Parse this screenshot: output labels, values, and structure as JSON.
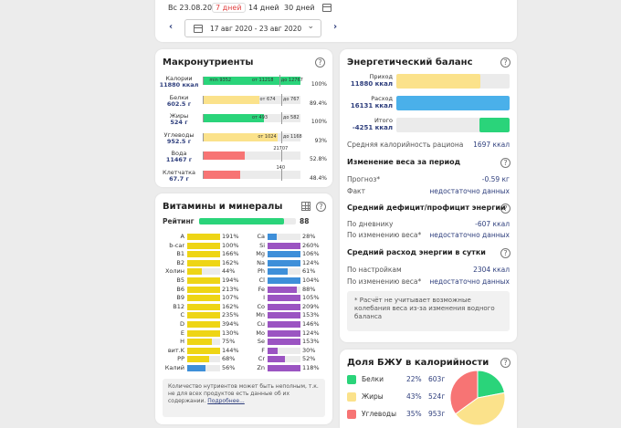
{
  "colors": {
    "green": "#2ad47a",
    "yellow": "#fbe28b",
    "blue": "#4ab0ea",
    "red": "#f77474",
    "vit_yellow": "#eed515",
    "vit_blue": "#3e8fd9",
    "vit_purple": "#9b54c2"
  },
  "top": {
    "periods": [
      "Вс 23.08.20",
      "7 дней",
      "14 дней",
      "30 дней"
    ],
    "active_period": "7 дней",
    "date_range": "17 авг 2020 - 23 авг 2020"
  },
  "macro": {
    "title": "Макронутриенты",
    "rows": [
      {
        "name": "Калории",
        "amount": "11880 ккал",
        "fill": 1.0,
        "color": "#2ad47a",
        "notes": [
          {
            "text": "min 9352",
            "pos": 0.06
          },
          {
            "text": "от 11218",
            "pos": 0.5
          },
          {
            "text": "до 12767",
            "pos": 0.8
          }
        ],
        "ticks": [
          0.78
        ],
        "pct": "100%"
      },
      {
        "name": "Белки",
        "amount": "602.5 г",
        "fill": 0.58,
        "color": "#fbe28b",
        "notes": [
          {
            "text": "от 674",
            "pos": 0.58
          },
          {
            "text": "до 767",
            "pos": 0.82
          }
        ],
        "ticks": [
          0.8
        ],
        "pct": "89.4%"
      },
      {
        "name": "Жиры",
        "amount": "524 г",
        "fill": 0.62,
        "color": "#2ad47a",
        "notes": [
          {
            "text": "от 493",
            "pos": 0.5
          },
          {
            "text": "до 582",
            "pos": 0.82
          }
        ],
        "ticks": [
          0.8
        ],
        "pct": "100%"
      },
      {
        "name": "Углеводы",
        "amount": "952.5 г",
        "fill": 0.76,
        "color": "#fbe28b",
        "notes": [
          {
            "text": "от 1024",
            "pos": 0.56
          },
          {
            "text": "до 1168",
            "pos": 0.82
          }
        ],
        "ticks": [
          0.8
        ],
        "pct": "93%"
      },
      {
        "name": "Вода",
        "amount": "11467 г",
        "fill": 0.42,
        "color": "#f77474",
        "notes": [
          {
            "text": "21707",
            "pos": 0.72
          }
        ],
        "ticks": [
          0.8
        ],
        "pct": "52.8%"
      },
      {
        "name": "Клетчатка",
        "amount": "67.7 г",
        "fill": 0.38,
        "color": "#f77474",
        "notes": [
          {
            "text": "140",
            "pos": 0.75
          }
        ],
        "ticks": [
          0.8
        ],
        "pct": "48.4%"
      }
    ]
  },
  "vit": {
    "title": "Витамины и минералы",
    "rating_label": "Рейтинг",
    "rating_value": "88",
    "rating_fill": 0.88,
    "left": [
      {
        "name": "A",
        "pct": "191%",
        "fill": 1.0,
        "color": "#eed515"
      },
      {
        "name": "b-car",
        "pct": "100%",
        "fill": 1.0,
        "color": "#eed515"
      },
      {
        "name": "B1",
        "pct": "166%",
        "fill": 1.0,
        "color": "#eed515"
      },
      {
        "name": "B2",
        "pct": "162%",
        "fill": 1.0,
        "color": "#eed515"
      },
      {
        "name": "Холин",
        "pct": "44%",
        "fill": 0.44,
        "color": "#eed515"
      },
      {
        "name": "B5",
        "pct": "194%",
        "fill": 1.0,
        "color": "#eed515"
      },
      {
        "name": "B6",
        "pct": "213%",
        "fill": 1.0,
        "color": "#eed515"
      },
      {
        "name": "B9",
        "pct": "107%",
        "fill": 1.0,
        "color": "#eed515"
      },
      {
        "name": "B12",
        "pct": "162%",
        "fill": 1.0,
        "color": "#eed515"
      },
      {
        "name": "C",
        "pct": "235%",
        "fill": 1.0,
        "color": "#eed515"
      },
      {
        "name": "D",
        "pct": "394%",
        "fill": 1.0,
        "color": "#eed515"
      },
      {
        "name": "E",
        "pct": "130%",
        "fill": 1.0,
        "color": "#eed515"
      },
      {
        "name": "H",
        "pct": "75%",
        "fill": 0.75,
        "color": "#eed515"
      },
      {
        "name": "вит.K",
        "pct": "144%",
        "fill": 1.0,
        "color": "#eed515"
      },
      {
        "name": "PP",
        "pct": "68%",
        "fill": 0.68,
        "color": "#eed515"
      },
      {
        "name": "Калий",
        "pct": "56%",
        "fill": 0.56,
        "color": "#3e8fd9"
      }
    ],
    "right": [
      {
        "name": "Ca",
        "pct": "28%",
        "fill": 0.28,
        "color": "#3e8fd9"
      },
      {
        "name": "Si",
        "pct": "260%",
        "fill": 1.0,
        "color": "#9b54c2"
      },
      {
        "name": "Mg",
        "pct": "106%",
        "fill": 1.0,
        "color": "#3e8fd9"
      },
      {
        "name": "Na",
        "pct": "124%",
        "fill": 1.0,
        "color": "#3e8fd9"
      },
      {
        "name": "Ph",
        "pct": "61%",
        "fill": 0.61,
        "color": "#3e8fd9"
      },
      {
        "name": "Cl",
        "pct": "104%",
        "fill": 1.0,
        "color": "#3e8fd9"
      },
      {
        "name": "Fe",
        "pct": "88%",
        "fill": 0.88,
        "color": "#9b54c2"
      },
      {
        "name": "I",
        "pct": "105%",
        "fill": 1.0,
        "color": "#9b54c2"
      },
      {
        "name": "Co",
        "pct": "209%",
        "fill": 1.0,
        "color": "#9b54c2"
      },
      {
        "name": "Mn",
        "pct": "153%",
        "fill": 1.0,
        "color": "#9b54c2"
      },
      {
        "name": "Cu",
        "pct": "146%",
        "fill": 1.0,
        "color": "#9b54c2"
      },
      {
        "name": "Mo",
        "pct": "124%",
        "fill": 1.0,
        "color": "#9b54c2"
      },
      {
        "name": "Se",
        "pct": "153%",
        "fill": 1.0,
        "color": "#9b54c2"
      },
      {
        "name": "F",
        "pct": "30%",
        "fill": 0.3,
        "color": "#9b54c2"
      },
      {
        "name": "Cr",
        "pct": "52%",
        "fill": 0.52,
        "color": "#9b54c2"
      },
      {
        "name": "Zn",
        "pct": "118%",
        "fill": 1.0,
        "color": "#9b54c2"
      }
    ],
    "note_text": "Количество нутриентов может быть неполным, т.к. не для всех продуктов есть данные об их содержании.",
    "note_link": "Подробнее..."
  },
  "energy": {
    "title": "Энергетический баланс",
    "bars": [
      {
        "label": "Приход",
        "value": "11880 ккал",
        "fill": 0.74,
        "color": "#fbe28b"
      },
      {
        "label": "Расход",
        "value": "16131 ккал",
        "fill": 1.0,
        "color": "#4ab0ea"
      },
      {
        "label": "Итого",
        "value": "-4251 ккал",
        "fill": 0.27,
        "color": "#2ad47a"
      }
    ],
    "avg_label": "Средняя калорийность рациона",
    "avg_value": "1697 ккал",
    "weight_title": "Изменение веса за период",
    "forecast_label": "Прогноз*",
    "forecast_value": "-0.59 кг",
    "fact_label": "Факт",
    "fact_value": "недостаточно данных",
    "deficit_title": "Средний дефицит/профицит энергии",
    "diary_label": "По дневнику",
    "diary_value": "-607 ккал",
    "byweight_label": "По изменению веса*",
    "byweight_value": "недостаточно данных",
    "expense_title": "Средний расход энергии в сутки",
    "settings_label": "По настройкам",
    "settings_value": "2304 ккал",
    "byweight2_label": "По изменению веса*",
    "byweight2_value": "недостаточно данных",
    "note": "* Расчёт не учитывает возможные колебания веса из-за изменения водного баланса"
  },
  "bju": {
    "title": "Доля БЖУ в калорийности",
    "rows": [
      {
        "name": "Белки",
        "pct": "22%",
        "grams": "603г",
        "share": 22,
        "color": "#2ad47a"
      },
      {
        "name": "Жиры",
        "pct": "43%",
        "grams": "524г",
        "share": 43,
        "color": "#fbe28b"
      },
      {
        "name": "Углеводы",
        "pct": "35%",
        "grams": "953г",
        "share": 35,
        "color": "#f77474"
      }
    ]
  }
}
